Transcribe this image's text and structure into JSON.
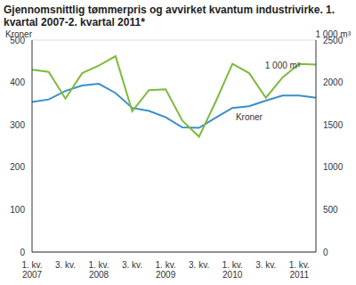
{
  "chart_data": {
    "type": "line",
    "title": "Gjennomsnittlig tømmerpris og avvirket kvantum industrivirke. 1. kvartal 2007-2. kvartal 2011*",
    "y_label": "Kroner",
    "y2_label": "1 000 m³",
    "categories": [
      "1. kv. 2007",
      null,
      "3. kv.",
      null,
      "1. kv. 2008",
      null,
      "3. kv.",
      null,
      "1. kv. 2009",
      null,
      "3. kv.",
      null,
      "1. kv. 2010",
      null,
      "3. kv.",
      null,
      "1. kv. 2011",
      null
    ],
    "series": [
      {
        "name": "Kroner",
        "color": "#3a8ec9",
        "values": [
          354,
          360,
          380,
          393,
          397,
          375,
          340,
          333,
          318,
          294,
          293,
          317,
          340,
          344,
          357,
          369,
          369,
          364
        ]
      },
      {
        "name": "1 000 m³",
        "color": "#7dbb3c",
        "axis": "y2",
        "values": [
          2150,
          2125,
          1810,
          2110,
          2200,
          2310,
          1660,
          1910,
          1920,
          1550,
          1360,
          1775,
          2220,
          2110,
          1820,
          2060,
          2220,
          2210
        ]
      }
    ],
    "ylim": [
      0,
      500
    ],
    "yticks": [
      0,
      100,
      200,
      300,
      400,
      500
    ],
    "y2lim": [
      0,
      2500
    ],
    "y2ticks": [
      0,
      500,
      1000,
      1500,
      2000,
      2500
    ],
    "grid": true
  }
}
